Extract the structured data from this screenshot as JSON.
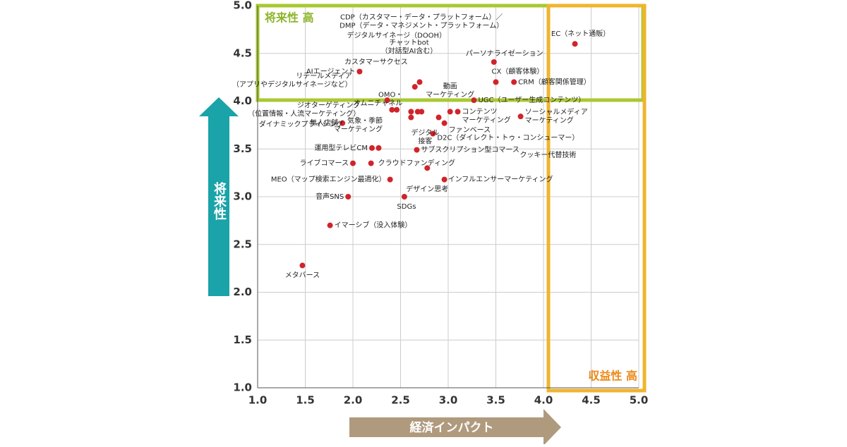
{
  "chart_data": {
    "type": "scatter",
    "color": "#d1232a",
    "grid": true,
    "x_label": "経済インパクト",
    "y_label": "将来性",
    "zone_top": "将来性 高",
    "zone_right": "収益性 高",
    "xlim": [
      1.0,
      5.0
    ],
    "ylim": [
      1.0,
      5.0
    ],
    "xticks": [
      {
        "value": 1,
        "label": "1.0"
      },
      {
        "value": 1.5,
        "label": "1.5"
      },
      {
        "value": 2,
        "label": "2.0"
      },
      {
        "value": 2.5,
        "label": "2.5"
      },
      {
        "value": 3,
        "label": "3.0"
      },
      {
        "value": 3.5,
        "label": "3.5"
      },
      {
        "value": 4,
        "label": "4.0"
      },
      {
        "value": 4.5,
        "label": "4.5"
      },
      {
        "value": 5,
        "label": "5.0"
      }
    ],
    "yticks": [
      {
        "value": 1,
        "label": "1.0"
      },
      {
        "value": 1.5,
        "label": "1.5"
      },
      {
        "value": 2,
        "label": "2.0"
      },
      {
        "value": 2.5,
        "label": "2.5"
      },
      {
        "value": 3,
        "label": "3.0"
      },
      {
        "value": 3.5,
        "label": "3.5"
      },
      {
        "value": 4,
        "label": "4.0"
      },
      {
        "value": 4.5,
        "label": "4.5"
      },
      {
        "value": 5,
        "label": "5.0"
      }
    ],
    "points": [
      {
        "label": "EC（ネット通販）",
        "x": 4.33,
        "y": 4.6
      },
      {
        "label": "パーソナライゼーション",
        "x": 3.48,
        "y": 4.41
      },
      {
        "label": "CX（顧客体験）",
        "x": 3.5,
        "y": 4.2
      },
      {
        "label": "CRM（顧客関係管理）",
        "x": 3.69,
        "y": 4.2
      },
      {
        "label": "UGC（ユーザー生成コンテンツ）",
        "x": 3.27,
        "y": 4.01
      },
      {
        "label": "ソーシャルメディア\nマーケティング",
        "x": 3.76,
        "y": 3.84
      },
      {
        "label": "コンテンツ\nマーケティング",
        "x": 3.1,
        "y": 3.89
      },
      {
        "label": "動画\nマーケティング",
        "x": 3.02,
        "y": 3.89
      },
      {
        "label": "ファンベース",
        "x": 2.96,
        "y": 3.77
      },
      {
        "label": "D2C（ダイレクト・トゥ・コンシューマー）",
        "x": 2.84,
        "y": 3.66
      },
      {
        "label": "サブスクリプション型コマース",
        "x": 2.67,
        "y": 3.49
      },
      {
        "label": "クッキー代替技術",
        "x": 2.27,
        "y": 3.51
      },
      {
        "label": "デジタル\n接客",
        "x": 2.61,
        "y": 3.83
      },
      {
        "label": "CDP（カスタマー・データ・プラットフォーム）／\nDMP（データ・マネジメント・プラットフォーム）",
        "x": 2.72,
        "y": 3.89
      },
      {
        "label": "デジタルサイネージ（DOOH）",
        "x": 2.68,
        "y": 3.89
      },
      {
        "label": "チャットbot\n（対話型AI含む）",
        "x": 2.7,
        "y": 4.2
      },
      {
        "label": "カスタマーサクセス",
        "x": 2.65,
        "y": 4.15
      },
      {
        "label": "AIエージェント",
        "x": 2.07,
        "y": 4.31
      },
      {
        "label": "リテールメディア\n（アプリやデジタルサイネージなど）",
        "x": 2.36,
        "y": 4.01
      },
      {
        "label": "OMO・\nオムニチャネル",
        "x": 2.61,
        "y": 3.89
      },
      {
        "label": "ジオターゲティング\n（位置情報・人流マーケティング）",
        "x": 2.41,
        "y": 3.91
      },
      {
        "label": "無人店舗",
        "x": 1.89,
        "y": 3.77
      },
      {
        "label": "ダイナミックプライシング",
        "x": 2.9,
        "y": 3.83
      },
      {
        "label": "気象・季節\nマーケティング",
        "x": 2.46,
        "y": 3.91
      },
      {
        "label": "運用型テレビCM",
        "x": 2.2,
        "y": 3.51
      },
      {
        "label": "ライブコマース",
        "x": 2.0,
        "y": 3.35
      },
      {
        "label": "クラウドファンディング",
        "x": 2.19,
        "y": 3.35
      },
      {
        "label": "デザイン思考",
        "x": 2.78,
        "y": 3.3
      },
      {
        "label": "インフルエンサーマーケティング",
        "x": 2.96,
        "y": 3.18
      },
      {
        "label": "MEO（マップ検索エンジン最適化）",
        "x": 2.39,
        "y": 3.18
      },
      {
        "label": "音声SNS",
        "x": 1.95,
        "y": 3.0
      },
      {
        "label": "SDGs",
        "x": 2.54,
        "y": 3.0
      },
      {
        "label": "イマーシブ（没入体験）",
        "x": 1.76,
        "y": 2.7
      },
      {
        "label": "メタバース",
        "x": 1.47,
        "y": 2.28
      }
    ]
  }
}
